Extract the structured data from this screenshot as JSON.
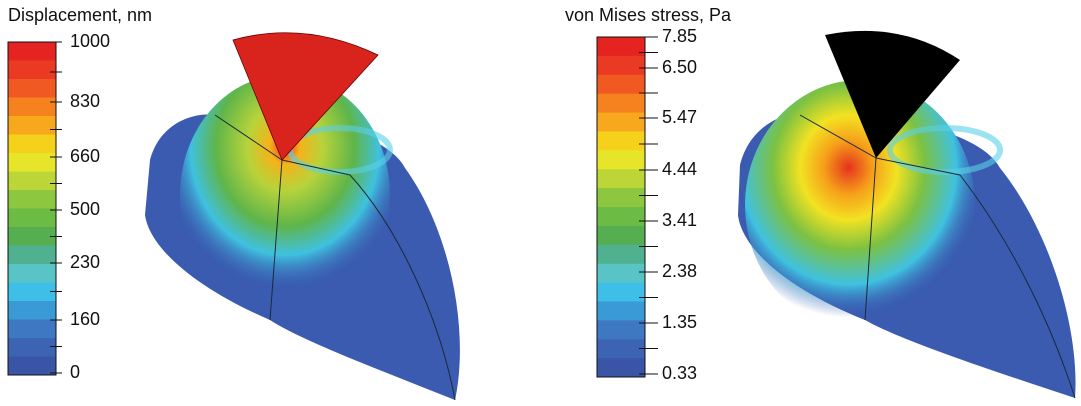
{
  "panels": [
    {
      "title": "Displacement, nm",
      "colorbar": {
        "labels": [
          "1000",
          "830",
          "660",
          "500",
          "230",
          "160",
          "0"
        ]
      }
    },
    {
      "title": "von Mises stress, Pa",
      "colorbar": {
        "labels": [
          "7.85",
          "6.50",
          "5.47",
          "4.44",
          "3.41",
          "2.38",
          "1.35",
          "0.33"
        ]
      }
    }
  ]
}
